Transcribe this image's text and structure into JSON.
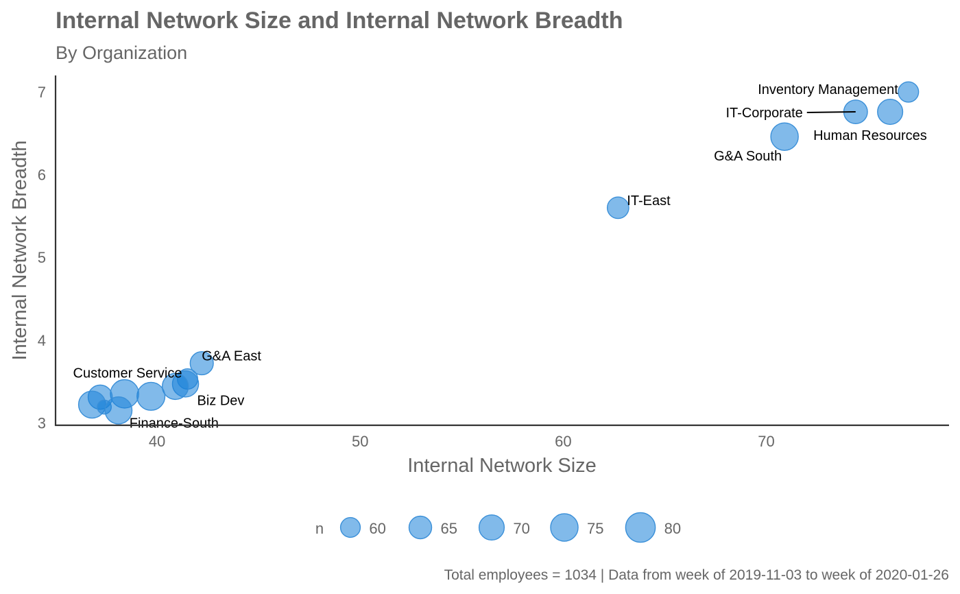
{
  "chart_data": {
    "type": "scatter",
    "title": "Internal Network Size and Internal Network Breadth",
    "subtitle": "By Organization",
    "xlabel": "Internal Network Size",
    "ylabel": "Internal Network Breadth",
    "xlim": [
      35,
      79
    ],
    "ylim": [
      2.97,
      7.2
    ],
    "xticks": [
      40,
      50,
      60,
      70
    ],
    "yticks": [
      3,
      4,
      5,
      6,
      7
    ],
    "caption": "Total employees = 1034 | Data from week of 2019-11-03 to week of 2020-01-26",
    "point_color": "#1a82d9",
    "point_stroke": "#3a8fd8",
    "grid": false,
    "legend": {
      "title": "n",
      "position": "bottom",
      "entries": [
        {
          "label": "60",
          "value": 60
        },
        {
          "label": "65",
          "value": 65
        },
        {
          "label": "70",
          "value": 70
        },
        {
          "label": "75",
          "value": 75
        },
        {
          "label": "80",
          "value": 80
        }
      ]
    },
    "points": [
      {
        "label": "Inventory Management",
        "x": 77.0,
        "y": 7.0,
        "n": 61
      },
      {
        "label": "IT-Corporate",
        "x": 74.4,
        "y": 6.76,
        "n": 67
      },
      {
        "label": "Human Resources",
        "x": 76.1,
        "y": 6.76,
        "n": 70
      },
      {
        "label": "G&A South",
        "x": 70.9,
        "y": 6.46,
        "n": 75
      },
      {
        "label": "IT-East",
        "x": 62.7,
        "y": 5.6,
        "n": 63
      },
      {
        "label": "G&A East",
        "x": 42.2,
        "y": 3.72,
        "n": 66
      },
      {
        "label": "Customer Service",
        "x": 41.5,
        "y": 3.53,
        "n": 61
      },
      {
        "label": "Biz Dev",
        "x": 41.4,
        "y": 3.47,
        "n": 72
      },
      {
        "label": "",
        "x": 40.9,
        "y": 3.44,
        "n": 72
      },
      {
        "label": "",
        "x": 39.7,
        "y": 3.32,
        "n": 76
      },
      {
        "label": "",
        "x": 38.4,
        "y": 3.35,
        "n": 77
      },
      {
        "label": "",
        "x": 37.2,
        "y": 3.31,
        "n": 68
      },
      {
        "label": "",
        "x": 36.8,
        "y": 3.22,
        "n": 74
      },
      {
        "label": "",
        "x": 37.4,
        "y": 3.19,
        "n": 52
      },
      {
        "label": "Finance-South",
        "x": 38.1,
        "y": 3.15,
        "n": 74
      }
    ]
  }
}
